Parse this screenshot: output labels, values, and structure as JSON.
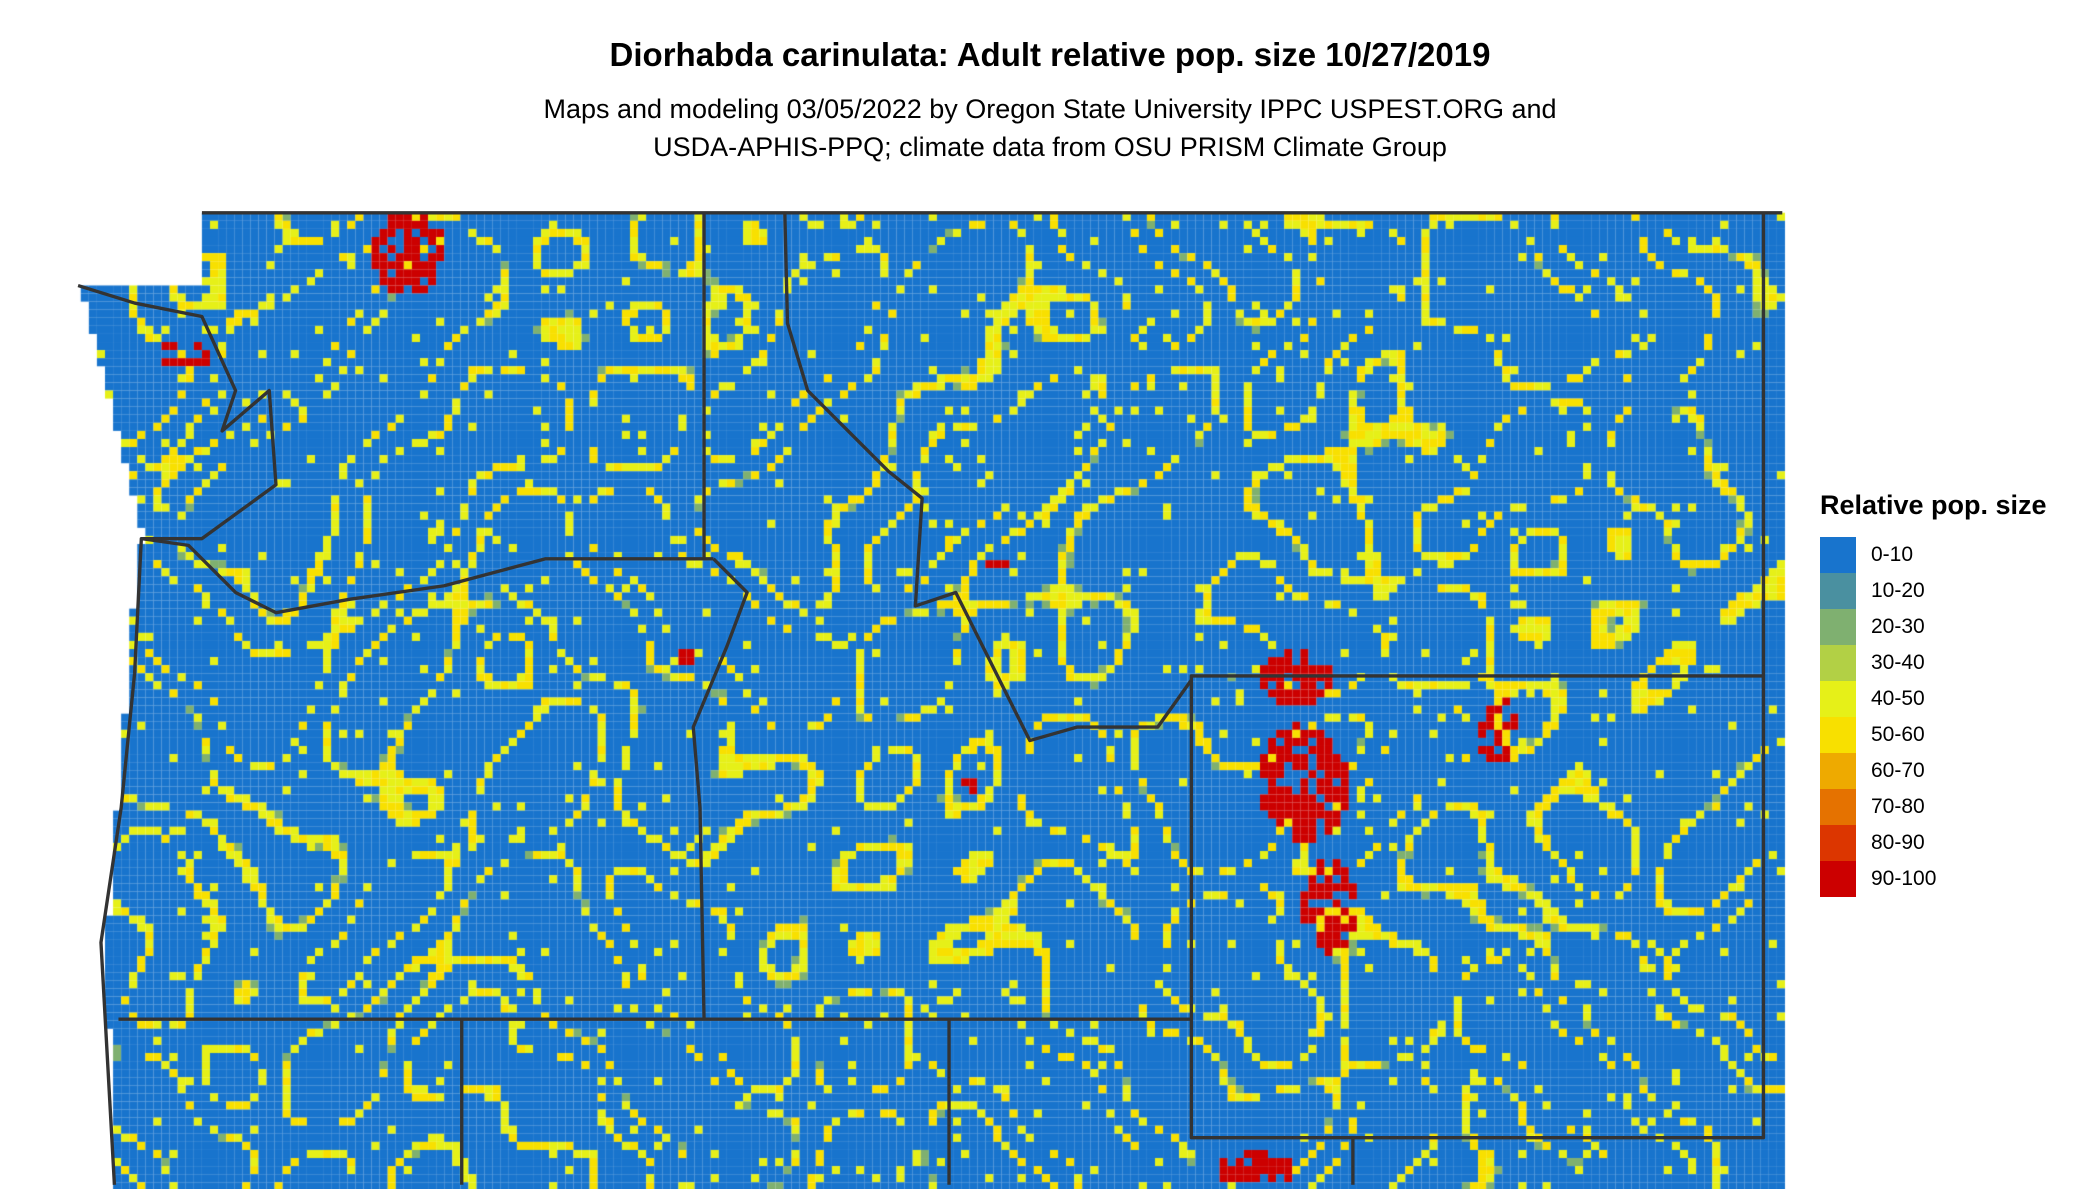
{
  "title": "Diorhabda carinulata: Adult relative pop. size 10/27/2019",
  "subtitle_lines": [
    "Maps and modeling 03/05/2022 by Oregon State University IPPC USPEST.ORG and",
    "USDA-APHIS-PPQ; climate data from OSU PRISM Climate Group"
  ],
  "legend": {
    "title": "Relative pop. size",
    "items": [
      {
        "label": "0-10",
        "color": "#1874CD"
      },
      {
        "label": "10-20",
        "color": "#4A90A0"
      },
      {
        "label": "20-30",
        "color": "#7FB070"
      },
      {
        "label": "30-40",
        "color": "#B2D045"
      },
      {
        "label": "40-50",
        "color": "#E6F018"
      },
      {
        "label": "50-60",
        "color": "#F8E000"
      },
      {
        "label": "60-70",
        "color": "#EEAA00"
      },
      {
        "label": "70-80",
        "color": "#E57200"
      },
      {
        "label": "80-90",
        "color": "#DC3600"
      },
      {
        "label": "90-100",
        "color": "#CC0000"
      }
    ]
  },
  "border_color": "#333333"
}
